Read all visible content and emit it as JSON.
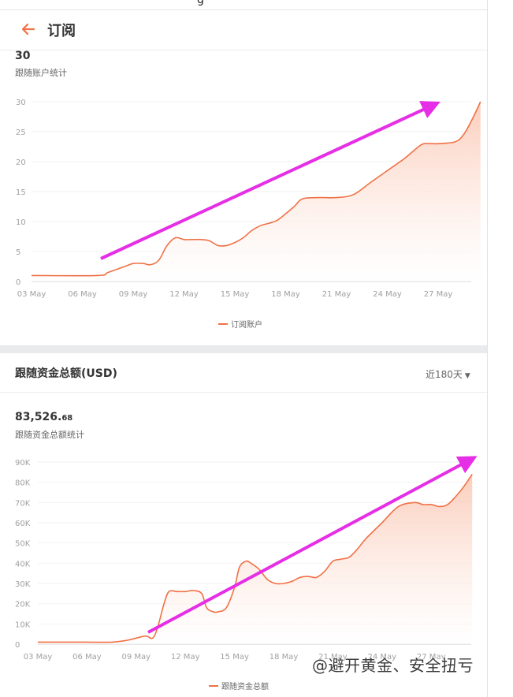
{
  "page": {
    "top_fragment": "g",
    "header": {
      "title": "订阅",
      "back_icon": "arrow-left-icon",
      "accent": "#f07146"
    },
    "subscriptions": {
      "value": "30",
      "label": "跟随账户统计",
      "legend": "订阅账户"
    },
    "funds": {
      "section_title": "跟随资金总额(USD)",
      "range_selector": "近180天",
      "range_icon": "caret-down-icon",
      "value_int": "83,526.",
      "value_dec": "68",
      "label": "跟随资金总额统计",
      "legend": "跟随资金总额"
    },
    "watermark": "@避开黄金、安全扭亏",
    "colors": {
      "line": "#f07146",
      "fill": "#fbd3c4",
      "annotation_arrow": "#e52ee5"
    }
  },
  "chart_data": [
    {
      "type": "area",
      "x_ticks": [
        "03 May",
        "06 May",
        "09 May",
        "12 May",
        "15 May",
        "18 May",
        "21 May",
        "24 May",
        "27 May"
      ],
      "y_ticks": [
        "0",
        "5",
        "10",
        "15",
        "20",
        "25",
        "30"
      ],
      "ylim": [
        0,
        30
      ],
      "series": [
        {
          "name": "订阅账户",
          "x": [
            3,
            6.9,
            7.5,
            8.5,
            9,
            9.6,
            10,
            10.5,
            11,
            11.5,
            12,
            12.5,
            13,
            13.5,
            14,
            14.5,
            15,
            15.5,
            16,
            16.5,
            17,
            17.5,
            18,
            18.5,
            19,
            20,
            21,
            22,
            23,
            24,
            25,
            26,
            26.5,
            27,
            28,
            28.5,
            29,
            29.5
          ],
          "y": [
            1,
            1,
            1.5,
            2.5,
            3,
            3,
            2.8,
            3.5,
            6,
            7.3,
            7,
            7,
            7,
            6.8,
            6,
            6,
            6.5,
            7.3,
            8.5,
            9.3,
            9.7,
            10.2,
            11.3,
            12.5,
            13.8,
            14,
            14,
            14.5,
            16.5,
            18.5,
            20.5,
            22.8,
            23,
            23,
            23.3,
            24.5,
            27,
            30
          ]
        }
      ],
      "grid": true,
      "legend": "bottom-center"
    },
    {
      "type": "area",
      "x_ticks": [
        "03 May",
        "06 May",
        "09 May",
        "12 May",
        "15 May",
        "18 May",
        "21 May",
        "24 May",
        "27 May"
      ],
      "y_ticks": [
        "0",
        "10K",
        "20K",
        "30K",
        "40K",
        "50K",
        "60K",
        "70K",
        "80K",
        "90K"
      ],
      "ylim": [
        0,
        90000
      ],
      "series": [
        {
          "name": "跟随资金总额",
          "x": [
            3,
            6,
            7.5,
            8.5,
            9,
            9.6,
            10,
            10.3,
            10.7,
            11,
            11.5,
            12,
            12.5,
            13,
            13.3,
            13.7,
            14,
            14.5,
            15,
            15.3,
            15.7,
            16,
            16.5,
            17,
            17.5,
            18,
            18.5,
            19,
            19.5,
            20,
            20.5,
            21,
            21.5,
            22,
            22.5,
            23,
            24,
            25,
            26,
            26.5,
            27,
            27.5,
            28,
            28.5,
            29,
            29.5
          ],
          "y": [
            1000,
            1000,
            1000,
            2000,
            3000,
            4000,
            3000,
            8000,
            20000,
            26000,
            26000,
            26000,
            26500,
            25000,
            18000,
            16000,
            16000,
            18000,
            28000,
            38000,
            41000,
            40000,
            37000,
            32000,
            30000,
            30000,
            31000,
            33000,
            33500,
            33000,
            36000,
            41000,
            42000,
            43000,
            47000,
            52000,
            60000,
            68000,
            70000,
            69000,
            69000,
            68000,
            69000,
            73000,
            78000,
            84000
          ]
        }
      ],
      "grid": true,
      "legend": "bottom-center"
    }
  ]
}
